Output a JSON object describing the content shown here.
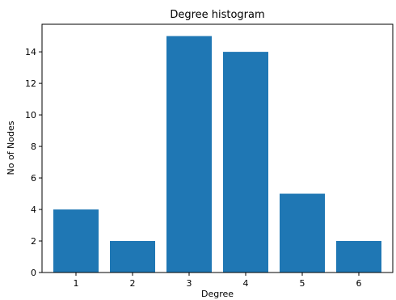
{
  "chart_data": {
    "type": "bar",
    "title": "Degree histogram",
    "xlabel": "Degree",
    "ylabel": "No of Nodes",
    "categories": [
      "1",
      "2",
      "3",
      "4",
      "5",
      "6"
    ],
    "values": [
      4,
      2,
      15,
      14,
      5,
      2
    ],
    "ylim": [
      0,
      15.75
    ],
    "yticks": [
      "0",
      "2",
      "4",
      "6",
      "8",
      "10",
      "12",
      "14"
    ],
    "grid": false,
    "bar_color": "#1f77b4"
  }
}
